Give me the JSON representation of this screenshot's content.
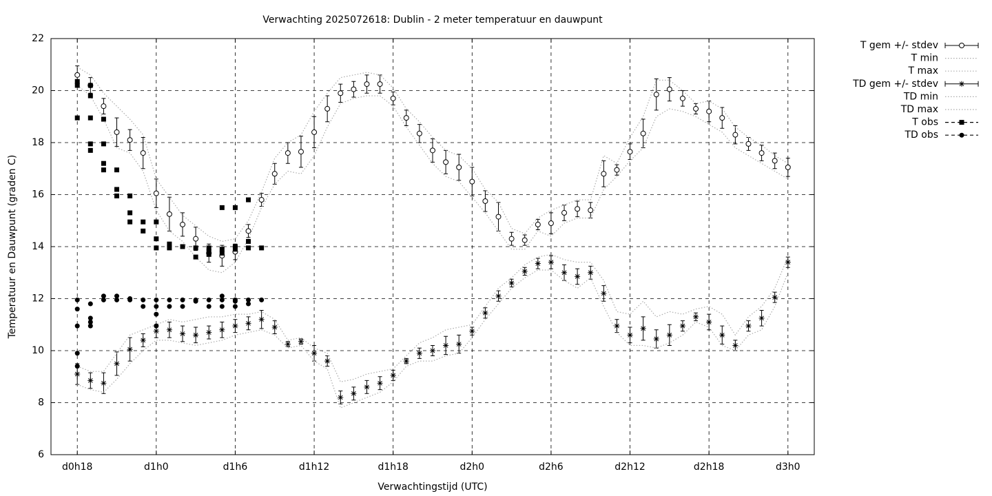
{
  "chart_data": {
    "type": "errorbar",
    "title": "Verwachting 2025072618: Dublin - 2 meter temperatuur en dauwpunt",
    "xlabel": "Verwachtingstijd (UTC)",
    "ylabel": "Temperatuur en Dauwpunt (graden C)",
    "xlim": [
      -2,
      56
    ],
    "ylim": [
      6,
      22
    ],
    "xticks": [
      {
        "value": 0,
        "label": "d0h18"
      },
      {
        "value": 6,
        "label": "d1h0"
      },
      {
        "value": 12,
        "label": "d1h6"
      },
      {
        "value": 18,
        "label": "d1h12"
      },
      {
        "value": 24,
        "label": "d1h18"
      },
      {
        "value": 30,
        "label": "d2h0"
      },
      {
        "value": 36,
        "label": "d2h6"
      },
      {
        "value": 42,
        "label": "d2h12"
      },
      {
        "value": 48,
        "label": "d2h18"
      },
      {
        "value": 54,
        "label": "d3h0"
      }
    ],
    "yticks": [
      6,
      8,
      10,
      12,
      14,
      16,
      18,
      20,
      22
    ],
    "grid": true,
    "legend": "outside-top-right",
    "x": [
      0,
      1,
      2,
      3,
      4,
      5,
      6,
      7,
      8,
      9,
      10,
      11,
      12,
      13,
      14,
      15,
      16,
      17,
      18,
      19,
      20,
      21,
      22,
      23,
      24,
      25,
      26,
      27,
      28,
      29,
      30,
      31,
      32,
      33,
      34,
      35,
      36,
      37,
      38,
      39,
      40,
      41,
      42,
      43,
      44,
      45,
      46,
      47,
      48,
      49,
      50,
      51,
      52,
      53,
      54
    ],
    "series": [
      {
        "name": "T gem +/- stdev",
        "color": "#000000",
        "marker": "circle-open",
        "style": "errorbars",
        "values": [
          20.6,
          20.2,
          19.4,
          18.4,
          18.1,
          17.6,
          16.05,
          15.25,
          14.85,
          14.3,
          13.75,
          13.65,
          13.8,
          14.6,
          15.8,
          16.8,
          17.6,
          17.65,
          18.4,
          19.3,
          19.9,
          20.05,
          20.25,
          20.25,
          19.7,
          18.95,
          18.35,
          17.7,
          17.25,
          17.05,
          16.5,
          15.75,
          15.15,
          14.3,
          14.25,
          14.85,
          14.9,
          15.3,
          15.45,
          15.4,
          16.8,
          16.95,
          17.65,
          18.35,
          19.85,
          20.05,
          19.7,
          19.3,
          19.2,
          18.95,
          18.3,
          17.95,
          17.6,
          17.3,
          17.05
        ],
        "errors": [
          0.35,
          0.3,
          0.3,
          0.55,
          0.4,
          0.6,
          0.55,
          0.65,
          0.45,
          0.45,
          0.35,
          0.4,
          0.3,
          0.25,
          0.25,
          0.4,
          0.4,
          0.6,
          0.6,
          0.5,
          0.35,
          0.3,
          0.35,
          0.35,
          0.25,
          0.3,
          0.35,
          0.45,
          0.45,
          0.5,
          0.55,
          0.4,
          0.55,
          0.25,
          0.2,
          0.2,
          0.4,
          0.3,
          0.3,
          0.3,
          0.5,
          0.2,
          0.3,
          0.55,
          0.6,
          0.45,
          0.3,
          0.2,
          0.4,
          0.4,
          0.35,
          0.25,
          0.3,
          0.3,
          0.35
        ]
      },
      {
        "name": "T min",
        "color": "#aaaaaa",
        "style": "dotted",
        "values": [
          20.2,
          19.8,
          18.9,
          17.8,
          17.6,
          16.9,
          15.4,
          14.6,
          14.2,
          13.6,
          13.1,
          13.0,
          13.4,
          14.3,
          15.5,
          16.4,
          16.9,
          16.8,
          17.5,
          18.6,
          19.5,
          19.7,
          19.8,
          19.8,
          19.4,
          18.6,
          17.9,
          17.2,
          16.7,
          16.5,
          15.9,
          15.3,
          14.6,
          13.9,
          13.9,
          14.6,
          14.4,
          14.9,
          15.1,
          15.1,
          16.2,
          16.7,
          17.3,
          17.8,
          19.0,
          19.3,
          19.2,
          19.0,
          18.7,
          18.4,
          17.8,
          17.5,
          17.2,
          16.9,
          16.6
        ]
      },
      {
        "name": "T max",
        "color": "#aaaaaa",
        "style": "dotted",
        "values": [
          20.9,
          20.6,
          19.9,
          19.4,
          18.9,
          18.3,
          16.6,
          15.9,
          15.2,
          14.8,
          14.4,
          14.2,
          14.3,
          15.0,
          16.1,
          17.4,
          18.0,
          18.3,
          19.2,
          19.9,
          20.5,
          20.6,
          20.7,
          20.6,
          20.1,
          19.3,
          18.8,
          18.2,
          17.7,
          17.5,
          17.0,
          16.2,
          15.7,
          14.7,
          14.5,
          15.1,
          15.4,
          15.6,
          15.8,
          15.8,
          17.5,
          17.2,
          18.2,
          19.0,
          20.4,
          20.4,
          20.0,
          19.5,
          19.6,
          19.3,
          18.6,
          18.2,
          17.9,
          17.5,
          17.2
        ]
      },
      {
        "name": "TD gem +/- stdev",
        "color": "#000000",
        "marker": "star",
        "style": "errorbars",
        "values": [
          9.1,
          8.85,
          8.75,
          9.5,
          10.05,
          10.4,
          10.75,
          10.8,
          10.65,
          10.6,
          10.7,
          10.8,
          10.95,
          11.05,
          11.2,
          10.9,
          10.25,
          10.35,
          9.9,
          9.6,
          8.2,
          8.35,
          8.6,
          8.75,
          9.05,
          9.6,
          9.9,
          10.0,
          10.2,
          10.25,
          10.75,
          11.45,
          12.1,
          12.6,
          13.05,
          13.35,
          13.4,
          13.0,
          12.85,
          13.0,
          12.2,
          10.95,
          10.6,
          10.85,
          10.45,
          10.6,
          10.95,
          11.3,
          11.1,
          10.6,
          10.2,
          10.95,
          11.25,
          12.05,
          13.4
        ],
        "errors": [
          0.4,
          0.3,
          0.4,
          0.45,
          0.45,
          0.25,
          0.25,
          0.3,
          0.3,
          0.3,
          0.25,
          0.3,
          0.25,
          0.25,
          0.35,
          0.25,
          0.1,
          0.1,
          0.3,
          0.2,
          0.25,
          0.25,
          0.25,
          0.25,
          0.2,
          0.1,
          0.2,
          0.2,
          0.35,
          0.35,
          0.15,
          0.2,
          0.2,
          0.15,
          0.15,
          0.2,
          0.25,
          0.3,
          0.3,
          0.25,
          0.3,
          0.25,
          0.3,
          0.45,
          0.35,
          0.4,
          0.2,
          0.15,
          0.3,
          0.35,
          0.2,
          0.2,
          0.3,
          0.2,
          0.2
        ]
      },
      {
        "name": "TD min",
        "color": "#aaaaaa",
        "style": "dotted",
        "values": [
          8.7,
          8.5,
          8.4,
          8.9,
          9.5,
          10.0,
          10.4,
          10.4,
          10.3,
          10.2,
          10.3,
          10.4,
          10.6,
          10.7,
          10.8,
          10.6,
          10.1,
          10.2,
          9.6,
          9.3,
          7.8,
          8.0,
          8.2,
          8.4,
          8.8,
          9.4,
          9.6,
          9.6,
          9.8,
          9.9,
          10.5,
          11.2,
          11.8,
          12.4,
          12.8,
          13.1,
          13.1,
          12.7,
          12.4,
          12.8,
          11.7,
          10.7,
          10.2,
          10.2,
          10.1,
          10.3,
          10.6,
          11.1,
          10.9,
          10.2,
          10.0,
          10.6,
          10.8,
          11.7,
          13.0
        ]
      },
      {
        "name": "TD max",
        "color": "#aaaaaa",
        "style": "dotted",
        "values": [
          9.4,
          9.2,
          9.2,
          9.9,
          10.6,
          10.8,
          11.0,
          11.2,
          11.1,
          11.2,
          11.3,
          11.3,
          11.4,
          11.4,
          11.5,
          11.2,
          10.4,
          10.5,
          10.1,
          9.9,
          8.8,
          8.9,
          9.1,
          9.2,
          9.3,
          9.8,
          10.3,
          10.5,
          10.8,
          10.9,
          11.0,
          11.7,
          12.4,
          12.8,
          13.3,
          13.6,
          13.7,
          13.5,
          13.4,
          13.4,
          12.7,
          11.5,
          11.4,
          11.9,
          11.3,
          11.5,
          11.4,
          11.6,
          11.7,
          11.4,
          10.6,
          11.3,
          11.7,
          12.4,
          13.6
        ]
      },
      {
        "name": "T obs",
        "color": "#000000",
        "marker": "square",
        "style": "points",
        "x": [
          0,
          0,
          0,
          1,
          1,
          1,
          1,
          1,
          2,
          2,
          2,
          2,
          3,
          3,
          3,
          4,
          4,
          4,
          5,
          5,
          6,
          6,
          6,
          7,
          7,
          8,
          9,
          9,
          10,
          10,
          10,
          11,
          11,
          11,
          12,
          12,
          12,
          13,
          13,
          13,
          14
        ],
        "values": [
          20.35,
          20.2,
          18.95,
          20.2,
          19.8,
          18.95,
          17.95,
          17.7,
          18.9,
          17.95,
          17.2,
          16.95,
          16.95,
          16.2,
          15.95,
          15.95,
          15.3,
          14.95,
          14.95,
          14.6,
          14.95,
          14.3,
          13.95,
          14.1,
          13.95,
          14.0,
          13.95,
          13.6,
          13.95,
          13.8,
          13.7,
          15.5,
          13.9,
          13.75,
          15.5,
          14.0,
          13.9,
          15.8,
          14.2,
          13.95,
          13.95
        ]
      },
      {
        "name": "TD obs",
        "color": "#000000",
        "marker": "circle",
        "style": "points",
        "x": [
          0,
          0,
          0,
          0,
          0,
          1,
          1,
          1,
          1,
          2,
          2,
          3,
          3,
          4,
          4,
          5,
          5,
          6,
          6,
          6,
          6,
          7,
          7,
          8,
          8,
          9,
          9,
          10,
          10,
          11,
          11,
          11,
          12,
          12,
          12,
          13,
          13,
          14
        ],
        "values": [
          11.95,
          11.6,
          10.95,
          9.9,
          9.4,
          11.8,
          11.25,
          11.1,
          10.95,
          12.1,
          11.95,
          12.1,
          11.95,
          12.0,
          11.95,
          11.95,
          11.7,
          11.95,
          11.7,
          11.4,
          10.95,
          11.95,
          11.7,
          11.95,
          11.7,
          11.95,
          11.9,
          11.95,
          11.7,
          12.1,
          11.95,
          11.7,
          11.95,
          11.9,
          11.7,
          11.95,
          11.8,
          11.95
        ]
      }
    ]
  }
}
